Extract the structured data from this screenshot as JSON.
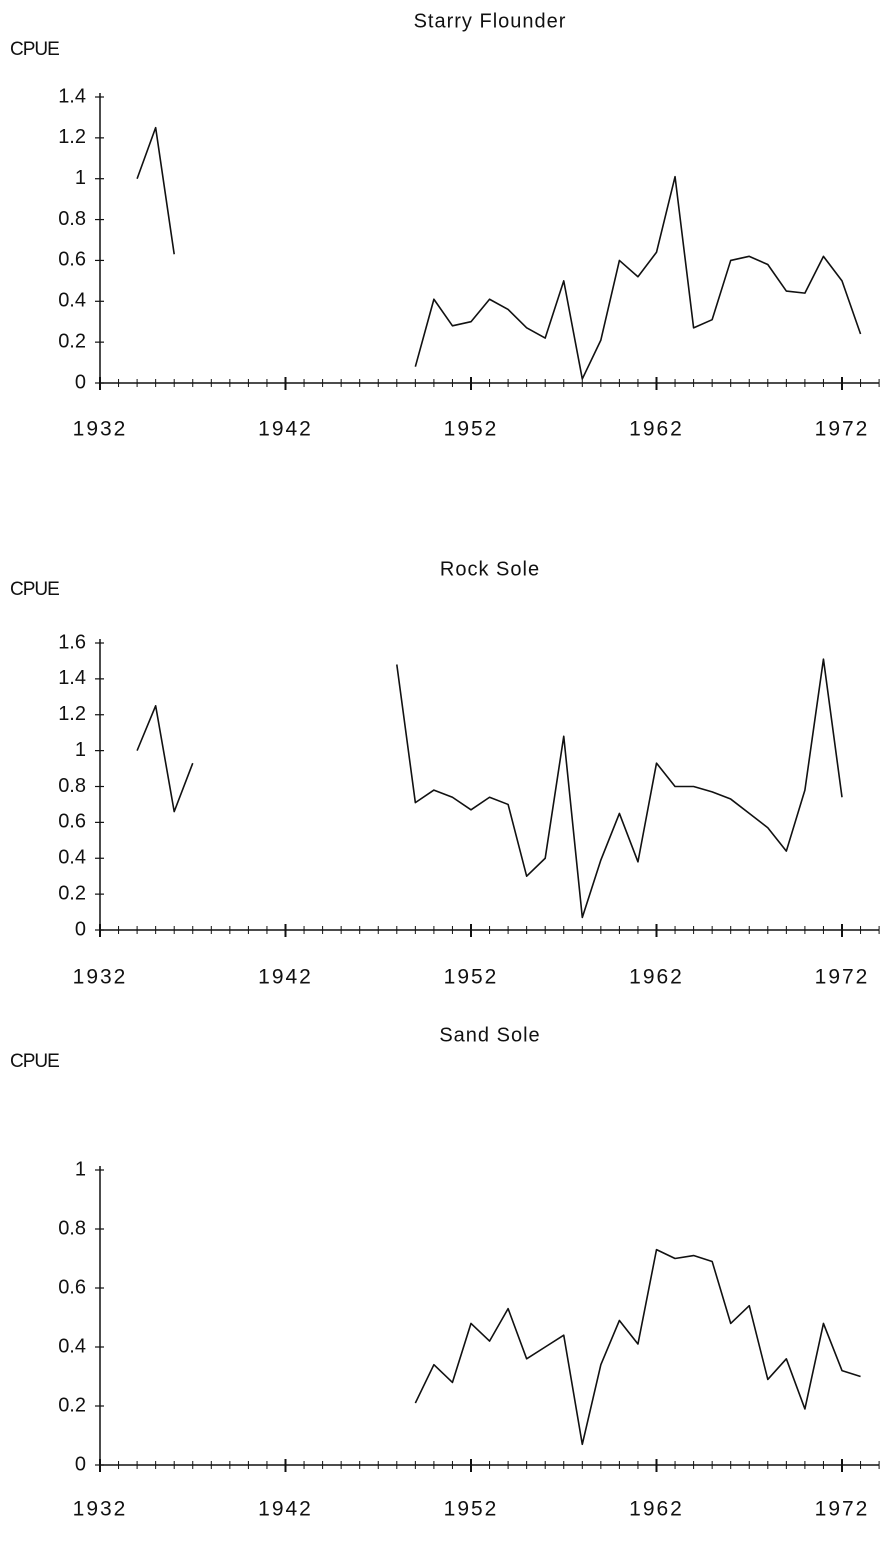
{
  "chart_data": [
    {
      "type": "line",
      "title": "Starry Flounder",
      "y_label": "CPUE",
      "x": [
        1934,
        1935,
        1936,
        1937,
        1938,
        1939,
        1940,
        1941,
        1942,
        1943,
        1944,
        1945,
        1946,
        1947,
        1948,
        1949,
        1950,
        1951,
        1952,
        1953,
        1954,
        1955,
        1956,
        1957,
        1958,
        1959,
        1960,
        1961,
        1962,
        1963,
        1964,
        1965,
        1966,
        1967,
        1968,
        1969,
        1970,
        1971,
        1972,
        1973
      ],
      "values": [
        1.0,
        1.25,
        0.63,
        null,
        null,
        null,
        null,
        null,
        null,
        null,
        null,
        null,
        null,
        null,
        null,
        0.08,
        0.41,
        0.28,
        0.3,
        0.41,
        0.36,
        0.27,
        0.22,
        0.5,
        0.02,
        0.21,
        0.6,
        0.52,
        0.64,
        1.01,
        0.27,
        0.31,
        0.6,
        0.62,
        0.58,
        0.45,
        0.44,
        0.62,
        0.5,
        0.24
      ],
      "color": "#111111",
      "xlim": [
        1932,
        1974
      ],
      "xticks": [
        1932,
        1942,
        1952,
        1962,
        1972
      ],
      "ylim": [
        0,
        1.4
      ],
      "yticks": [
        0,
        0.2,
        0.4,
        0.6,
        0.8,
        1,
        1.2,
        1.4
      ]
    },
    {
      "type": "line",
      "title": "Rock Sole",
      "y_label": "CPUE",
      "x": [
        1934,
        1935,
        1936,
        1937,
        1938,
        1939,
        1940,
        1941,
        1942,
        1943,
        1944,
        1945,
        1946,
        1947,
        1948,
        1949,
        1950,
        1951,
        1952,
        1953,
        1954,
        1955,
        1956,
        1957,
        1958,
        1959,
        1960,
        1961,
        1962,
        1963,
        1964,
        1965,
        1966,
        1967,
        1968,
        1969,
        1970,
        1971,
        1972
      ],
      "values": [
        1.0,
        1.25,
        0.66,
        0.93,
        null,
        null,
        null,
        null,
        null,
        null,
        null,
        null,
        null,
        null,
        1.48,
        0.71,
        0.78,
        0.74,
        0.67,
        0.74,
        0.7,
        0.3,
        0.4,
        1.08,
        0.07,
        0.39,
        0.65,
        0.38,
        0.93,
        0.8,
        0.8,
        0.77,
        0.73,
        0.65,
        0.57,
        0.44,
        0.78,
        1.51,
        0.74
      ],
      "color": "#111111",
      "xlim": [
        1932,
        1974
      ],
      "xticks": [
        1932,
        1942,
        1952,
        1962,
        1972
      ],
      "ylim": [
        0,
        1.6
      ],
      "yticks": [
        0,
        0.2,
        0.4,
        0.6,
        0.8,
        1,
        1.2,
        1.4,
        1.6
      ]
    },
    {
      "type": "line",
      "title": "Sand Sole",
      "y_label": "CPUE",
      "x": [
        1949,
        1950,
        1951,
        1952,
        1953,
        1954,
        1955,
        1956,
        1957,
        1958,
        1959,
        1960,
        1961,
        1962,
        1963,
        1964,
        1965,
        1966,
        1967,
        1968,
        1969,
        1970,
        1971,
        1972,
        1973
      ],
      "values": [
        0.21,
        0.34,
        0.28,
        0.48,
        0.42,
        0.53,
        0.36,
        0.4,
        0.44,
        0.07,
        0.34,
        0.49,
        0.41,
        0.73,
        0.7,
        0.71,
        0.69,
        0.48,
        0.54,
        0.29,
        0.36,
        0.19,
        0.48,
        0.32,
        0.3
      ],
      "color": "#111111",
      "xlim": [
        1932,
        1974
      ],
      "xticks": [
        1932,
        1942,
        1952,
        1962,
        1972
      ],
      "ylim": [
        0,
        1
      ],
      "yticks": [
        0,
        0.2,
        0.4,
        0.6,
        0.8,
        1
      ]
    }
  ]
}
